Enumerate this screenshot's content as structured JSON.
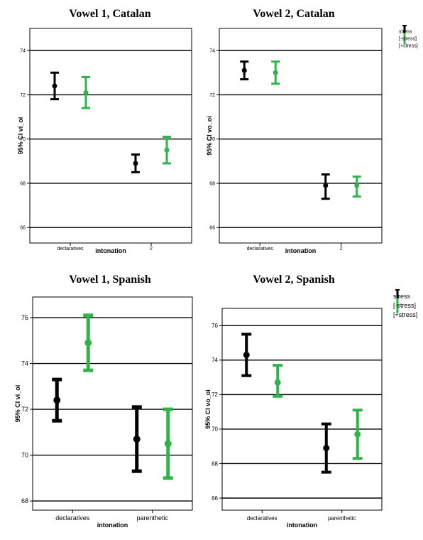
{
  "colors": {
    "no_stress": "#000000",
    "stress": "#2fb34a",
    "gridline": "#000000"
  },
  "chart_data": [
    {
      "type": "errorbar",
      "title": "Vowel 1, Catalan",
      "xlabel": "intonation",
      "ylabel": "95% CI vi_oi",
      "categories": [
        "declaratives",
        "2"
      ],
      "ylim": [
        65.3,
        75
      ],
      "yticks": [
        66,
        68,
        70,
        72,
        74
      ],
      "grid": true,
      "series": [
        {
          "key": "no_stress",
          "mean": [
            72.4,
            68.9
          ],
          "lower": [
            71.8,
            68.5
          ],
          "upper": [
            73.0,
            69.3
          ]
        },
        {
          "key": "stress",
          "mean": [
            72.1,
            69.5
          ],
          "lower": [
            71.4,
            68.9
          ],
          "upper": [
            72.8,
            70.1
          ]
        }
      ]
    },
    {
      "type": "errorbar",
      "title": "Vowel 2, Catalan",
      "xlabel": "intonation",
      "ylabel": "95% CI vo_oi",
      "categories": [
        "declaratives",
        "2"
      ],
      "ylim": [
        65.3,
        75
      ],
      "yticks": [
        66,
        68,
        70,
        72,
        74
      ],
      "grid": true,
      "series": [
        {
          "key": "no_stress",
          "mean": [
            73.1,
            67.9
          ],
          "lower": [
            72.7,
            67.3
          ],
          "upper": [
            73.5,
            68.4
          ]
        },
        {
          "key": "stress",
          "mean": [
            73.0,
            67.9
          ],
          "lower": [
            72.5,
            67.4
          ],
          "upper": [
            73.5,
            68.3
          ]
        }
      ],
      "legend": {
        "title": "stress",
        "entries": [
          "[-stress]",
          "[+stress]"
        ],
        "placement": "right"
      }
    },
    {
      "type": "errorbar",
      "title": "Vowel 1, Spanish",
      "xlabel": "intonation",
      "ylabel": "95% CI vi_oi",
      "categories": [
        "declaratives",
        "parenthetic"
      ],
      "ylim": [
        67.6,
        76.9
      ],
      "yticks": [
        68,
        70,
        72,
        74,
        76
      ],
      "grid": true,
      "series": [
        {
          "key": "no_stress",
          "mean": [
            72.4,
            70.7
          ],
          "lower": [
            71.5,
            69.3
          ],
          "upper": [
            73.3,
            72.1
          ]
        },
        {
          "key": "stress",
          "mean": [
            74.9,
            70.5
          ],
          "lower": [
            73.7,
            69.0
          ],
          "upper": [
            76.1,
            72.0
          ]
        }
      ]
    },
    {
      "type": "errorbar",
      "title": "Vowel 2, Spanish",
      "xlabel": "intonation",
      "ylabel": "95% CI vo_oi",
      "categories": [
        "declaratives",
        "parenthetic"
      ],
      "ylim": [
        65.3,
        77
      ],
      "yticks": [
        66,
        68,
        70,
        72,
        74,
        76
      ],
      "grid": true,
      "series": [
        {
          "key": "no_stress",
          "mean": [
            74.3,
            68.9
          ],
          "lower": [
            73.1,
            67.5
          ],
          "upper": [
            75.5,
            70.3
          ]
        },
        {
          "key": "stress",
          "mean": [
            72.7,
            69.7
          ],
          "lower": [
            71.9,
            68.3
          ],
          "upper": [
            73.7,
            71.1
          ]
        }
      ],
      "legend": {
        "title": "stress",
        "entries": [
          "[-stress]",
          "[+stress]"
        ],
        "placement": "right"
      }
    }
  ]
}
